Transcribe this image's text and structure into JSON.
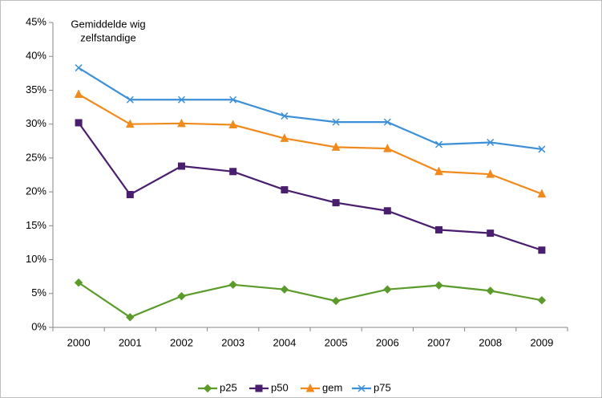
{
  "chart_data": {
    "type": "line",
    "annotation": [
      "Gemiddelde wig",
      "zelfstandige"
    ],
    "categories": [
      "2000",
      "2001",
      "2002",
      "2003",
      "2004",
      "2005",
      "2006",
      "2007",
      "2008",
      "2009"
    ],
    "series": [
      {
        "name": "p25",
        "color": "#5b9b2a",
        "marker": "diamond",
        "values": [
          6.6,
          1.5,
          4.6,
          6.3,
          5.6,
          3.9,
          5.6,
          6.2,
          5.4,
          4.0
        ]
      },
      {
        "name": "p50",
        "color": "#4a1e6e",
        "marker": "square",
        "values": [
          30.2,
          19.6,
          23.8,
          23.0,
          20.3,
          18.4,
          17.2,
          14.4,
          13.9,
          11.4
        ]
      },
      {
        "name": "gem",
        "color": "#f08a1d",
        "marker": "triangle",
        "values": [
          34.4,
          30.0,
          30.1,
          29.9,
          27.9,
          26.6,
          26.4,
          23.0,
          22.6,
          19.7
        ]
      },
      {
        "name": "p75",
        "color": "#3d90d8",
        "marker": "x",
        "values": [
          38.3,
          33.6,
          33.6,
          33.6,
          31.2,
          30.3,
          30.3,
          27.0,
          27.3,
          26.3
        ]
      }
    ],
    "ylim": [
      0,
      45
    ],
    "yticks": [
      {
        "value": 0,
        "label": "0%"
      },
      {
        "value": 5,
        "label": "5%"
      },
      {
        "value": 10,
        "label": "10%"
      },
      {
        "value": 15,
        "label": "15%"
      },
      {
        "value": 20,
        "label": "20%"
      },
      {
        "value": 25,
        "label": "25%"
      },
      {
        "value": 30,
        "label": "30%"
      },
      {
        "value": 35,
        "label": "35%"
      },
      {
        "value": 40,
        "label": "40%"
      },
      {
        "value": 45,
        "label": "45%"
      }
    ],
    "grid": false,
    "legend": "bottom"
  }
}
